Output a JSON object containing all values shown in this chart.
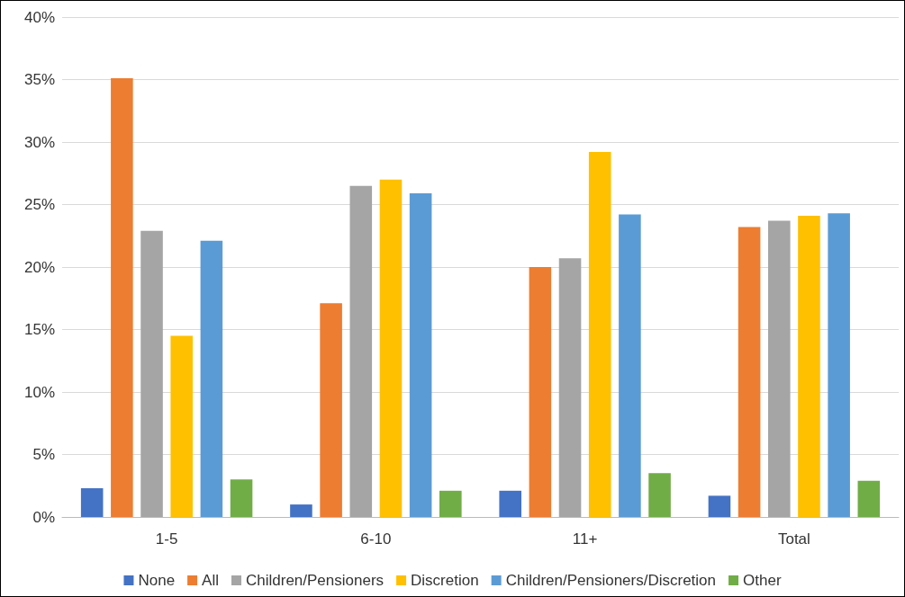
{
  "chart_data": {
    "type": "bar",
    "categories": [
      "1-5",
      "6-10",
      "11+",
      "Total"
    ],
    "series": [
      {
        "name": "None",
        "color": "#4472c4",
        "values": [
          2.3,
          1.0,
          2.1,
          1.7
        ]
      },
      {
        "name": "All",
        "color": "#ed7d31",
        "values": [
          35.1,
          17.1,
          20.0,
          23.2
        ]
      },
      {
        "name": "Children/Pensioners",
        "color": "#a5a5a5",
        "values": [
          22.9,
          26.5,
          20.7,
          23.7
        ]
      },
      {
        "name": "Discretion",
        "color": "#ffc000",
        "values": [
          14.5,
          27.0,
          29.2,
          24.1
        ]
      },
      {
        "name": "Children/Pensioners/Discretion",
        "color": "#5b9bd5",
        "values": [
          22.1,
          25.9,
          24.2,
          24.3
        ]
      },
      {
        "name": "Other",
        "color": "#70ad47",
        "values": [
          3.0,
          2.1,
          3.5,
          2.9
        ]
      }
    ],
    "ylim": [
      0,
      40
    ],
    "yticks": [
      {
        "value": 0,
        "label": "0%"
      },
      {
        "value": 5,
        "label": "5%"
      },
      {
        "value": 10,
        "label": "10%"
      },
      {
        "value": 15,
        "label": "15%"
      },
      {
        "value": 20,
        "label": "20%"
      },
      {
        "value": 25,
        "label": "25%"
      },
      {
        "value": 30,
        "label": "30%"
      },
      {
        "value": 35,
        "label": "35%"
      },
      {
        "value": 40,
        "label": "40%"
      }
    ],
    "grid": "y",
    "legend": "bottom"
  }
}
